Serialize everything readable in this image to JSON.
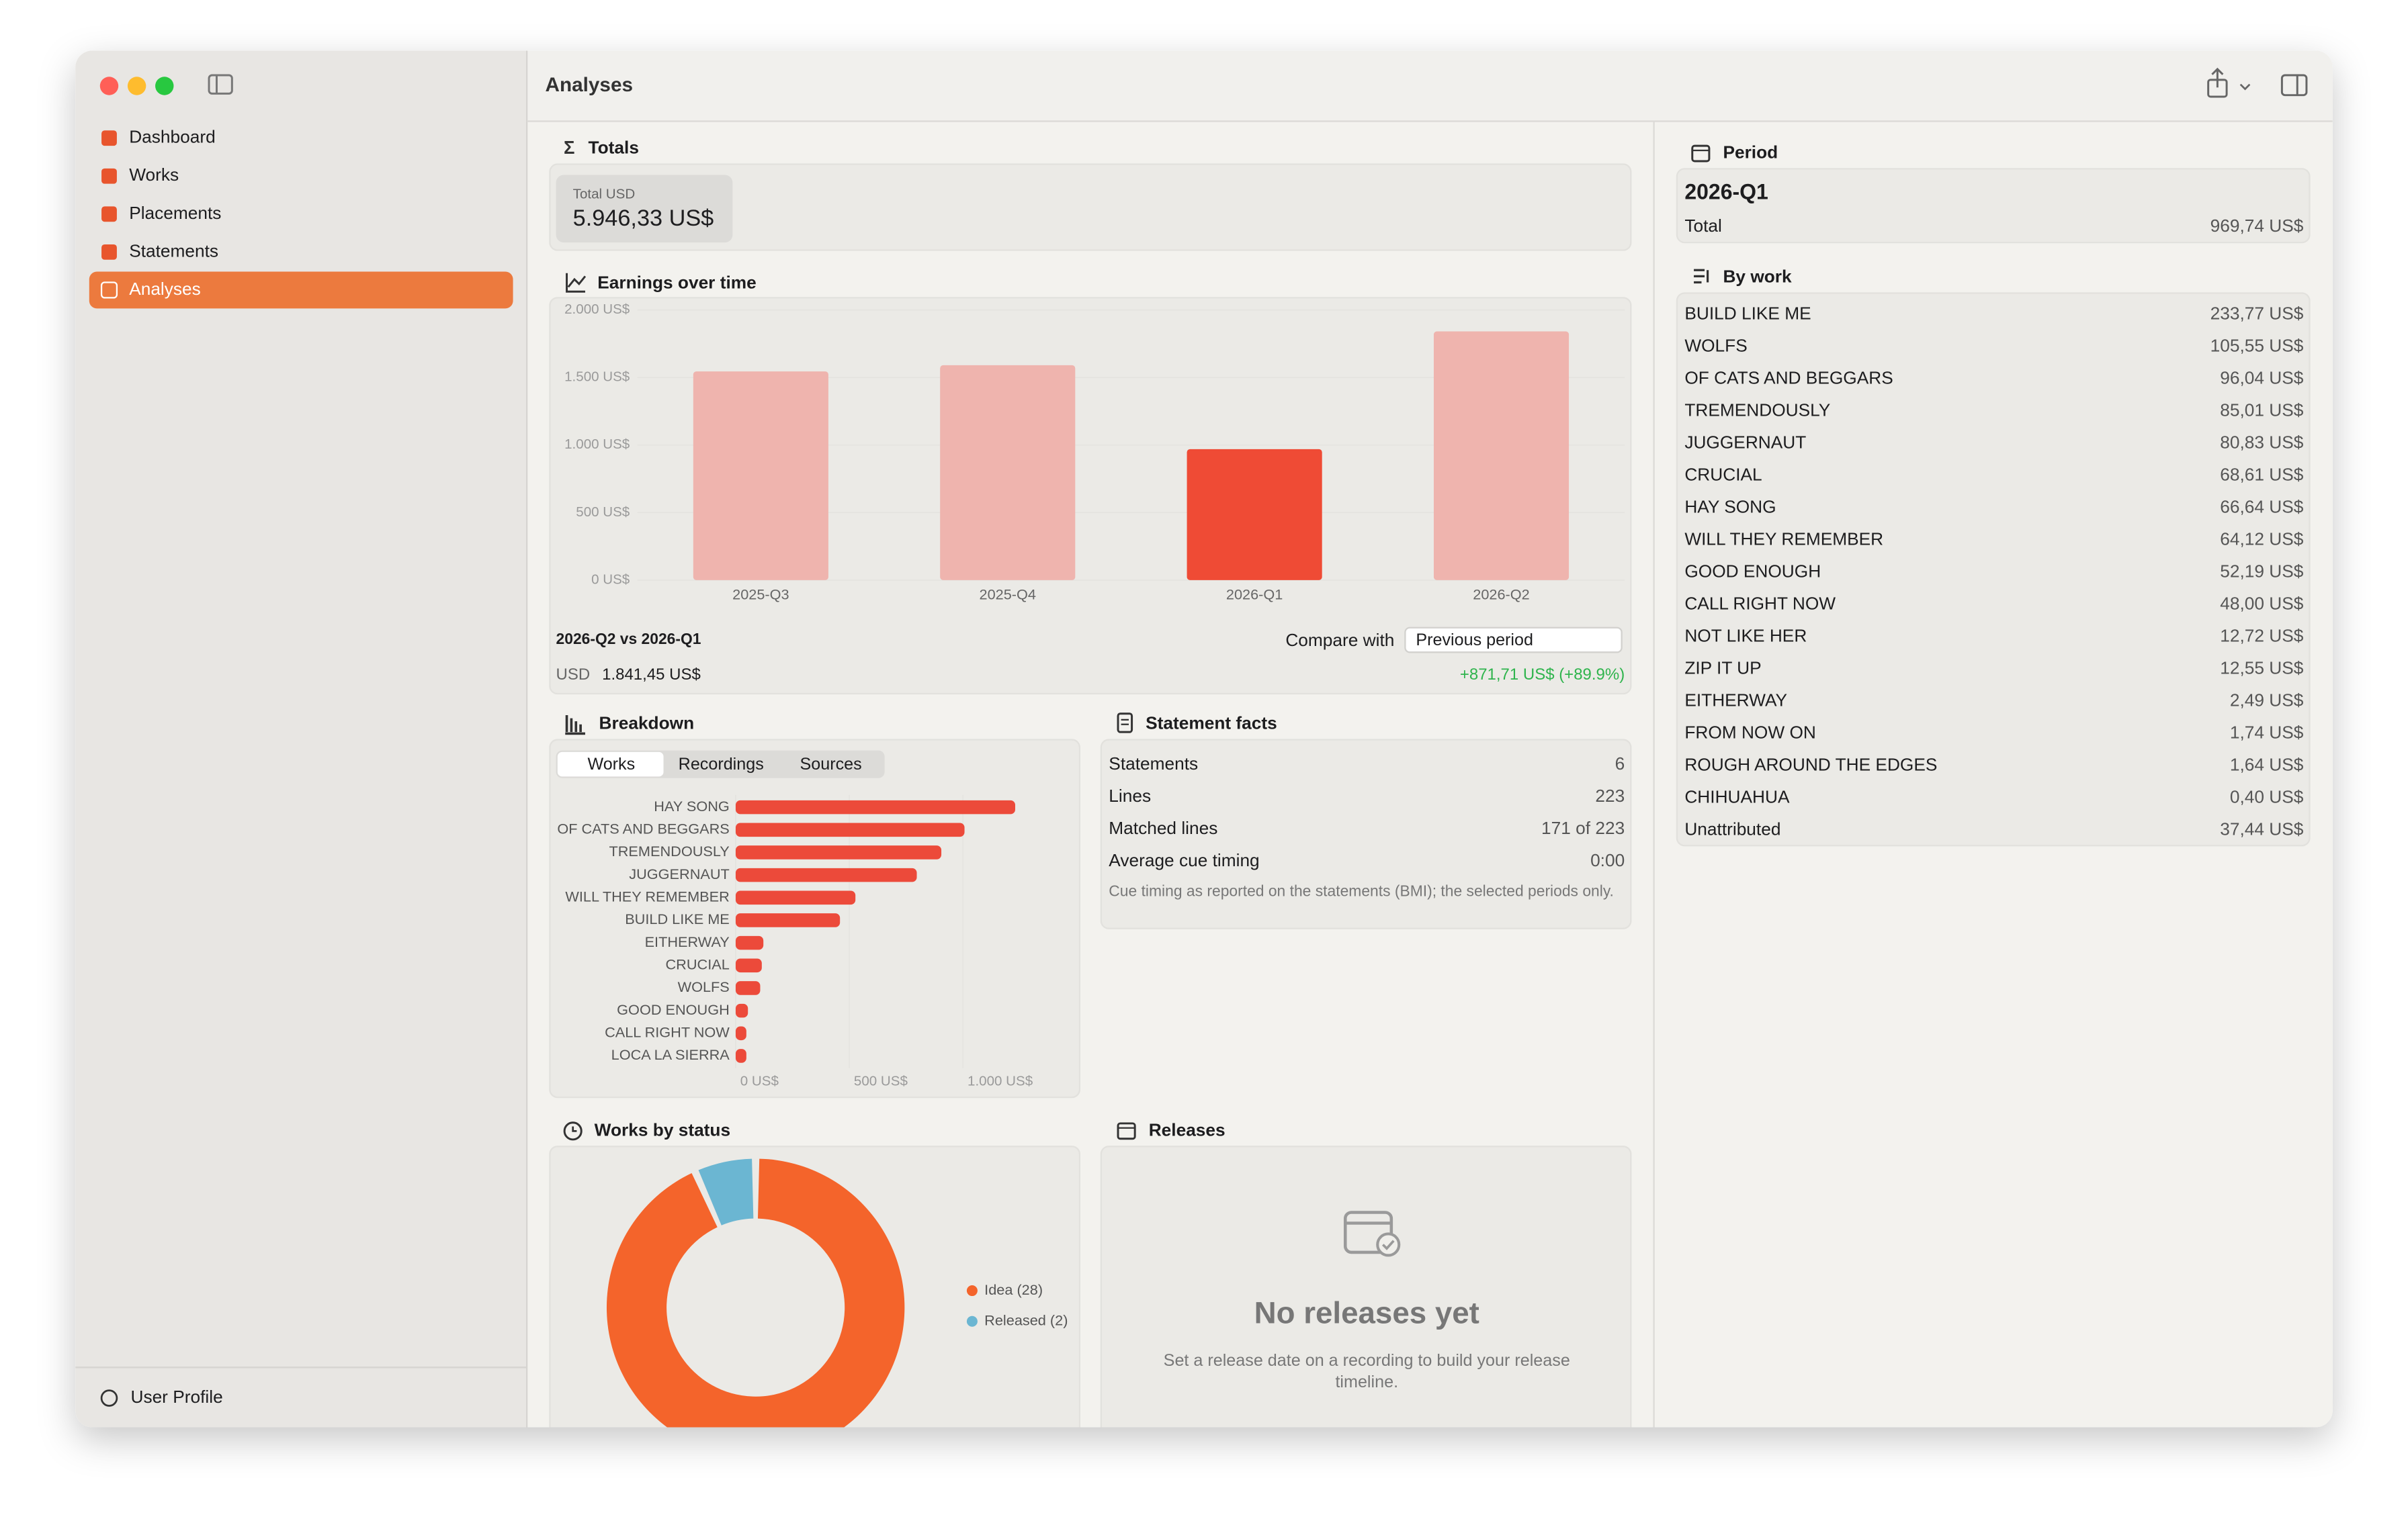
{
  "window": {
    "title": "Analyses"
  },
  "sidebar": {
    "items": [
      "Dashboard",
      "Works",
      "Placements",
      "Statements",
      "Analyses"
    ],
    "selected_index": 4,
    "footer": "User Profile"
  },
  "totals": {
    "heading": "Totals",
    "label": "Total USD",
    "value": "5.946,33 US$"
  },
  "chart_data": [
    {
      "type": "bar",
      "title": "Earnings over time",
      "categories": [
        "2025-Q3",
        "2025-Q4",
        "2026-Q1",
        "2026-Q2"
      ],
      "values": [
        1545,
        1591,
        969.74,
        1841.45
      ],
      "colors": [
        "#efb4ae",
        "#efb4ae",
        "#ef4b35",
        "#efb4ae"
      ],
      "ylim": [
        0,
        2000
      ],
      "yticks": [
        {
          "value": 0,
          "label": "0 US$"
        },
        {
          "value": 500,
          "label": "500 US$"
        },
        {
          "value": 1000,
          "label": "1.000 US$"
        },
        {
          "value": 1500,
          "label": "1.500 US$"
        },
        {
          "value": 2000,
          "label": "2.000 US$"
        }
      ]
    },
    {
      "type": "hbar",
      "title": "Breakdown",
      "tabs": [
        "Works",
        "Recordings",
        "Sources"
      ],
      "selected_tab": 0,
      "categories": [
        "HAY SONG",
        "OF CATS AND BEGGARS",
        "TREMENDOUSLY",
        "JUGGERNAUT",
        "WILL THEY REMEMBER",
        "BUILD LIKE ME",
        "EITHERWAY",
        "CRUCIAL",
        "WOLFS",
        "GOOD ENOUGH",
        "CALL RIGHT NOW",
        "LOCA LA SIERRA"
      ],
      "values": [
        1230,
        1007,
        905,
        797,
        527,
        459,
        122,
        115,
        108,
        54,
        47,
        47
      ],
      "color": "#ec4a3a",
      "xlim": [
        0,
        1500
      ],
      "xticks": [
        {
          "value": 0,
          "label": "0 US$"
        },
        {
          "value": 500,
          "label": "500 US$"
        },
        {
          "value": 1000,
          "label": "1.000 US$"
        }
      ]
    },
    {
      "type": "donut",
      "title": "Works by status",
      "categories": [
        "Idea (28)",
        "Released (2)"
      ],
      "values": [
        28,
        2
      ],
      "colors": [
        "#f4642b",
        "#6bb6d2"
      ]
    }
  ],
  "comparison": {
    "title": "2026-Q2 vs 2026-Q1",
    "compare_label": "Compare with",
    "compare_option": "Previous period",
    "currency": "USD",
    "amount": "1.841,45 US$",
    "change": "+871,71 US$ (+89.9%)"
  },
  "statement_facts": {
    "heading": "Statement facts",
    "rows": [
      [
        "Statements",
        "6"
      ],
      [
        "Lines",
        "223"
      ],
      [
        "Matched lines",
        "171 of 223"
      ],
      [
        "Average cue timing",
        "0:00"
      ]
    ],
    "note": "Cue timing as reported on the statements (BMI); the selected periods only."
  },
  "releases": {
    "heading": "Releases",
    "empty_title": "No releases yet",
    "empty_text": "Set a release date on a recording to build your release timeline."
  },
  "inspector": {
    "period_heading": "Period",
    "period": "2026-Q1",
    "total_label": "Total",
    "total_value": "969,74 US$",
    "by_work_heading": "By work",
    "rows": [
      [
        "BUILD LIKE ME",
        "233,77 US$"
      ],
      [
        "WOLFS",
        "105,55 US$"
      ],
      [
        "OF CATS AND BEGGARS",
        "96,04 US$"
      ],
      [
        "TREMENDOUSLY",
        "85,01 US$"
      ],
      [
        "JUGGERNAUT",
        "80,83 US$"
      ],
      [
        "CRUCIAL",
        "68,61 US$"
      ],
      [
        "HAY SONG",
        "66,64 US$"
      ],
      [
        "WILL THEY REMEMBER",
        "64,12 US$"
      ],
      [
        "GOOD ENOUGH",
        "52,19 US$"
      ],
      [
        "CALL RIGHT NOW",
        "48,00 US$"
      ],
      [
        "NOT LIKE HER",
        "12,72 US$"
      ],
      [
        "ZIP IT UP",
        "12,55 US$"
      ],
      [
        "EITHERWAY",
        "2,49 US$"
      ],
      [
        "FROM NOW ON",
        "1,74 US$"
      ],
      [
        "ROUGH AROUND THE EDGES",
        "1,64 US$"
      ],
      [
        "CHIHUAHUA",
        "0,40 US$"
      ],
      [
        "Unattributed",
        "37,44 US$"
      ]
    ]
  }
}
